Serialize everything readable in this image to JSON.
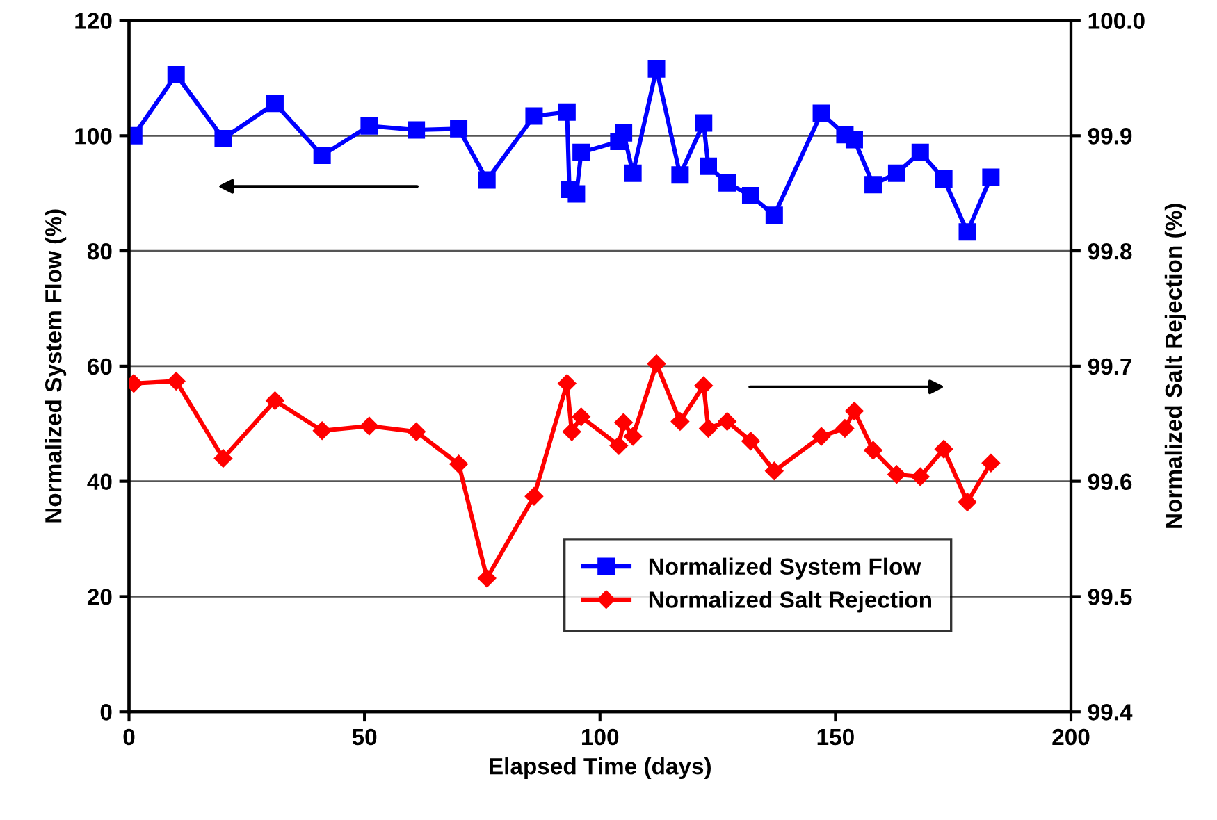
{
  "chart_data": {
    "type": "line",
    "xlabel": "Elapsed Time (days)",
    "ylabel": "Normalized System Flow (%)",
    "y2label": "Normalized Salt Rejection (%)",
    "xlim": [
      0,
      200
    ],
    "xticks": [
      0,
      50,
      100,
      150,
      200
    ],
    "ylim": [
      0,
      120
    ],
    "yticks": [
      0,
      20,
      40,
      60,
      80,
      100,
      120
    ],
    "y2lim": [
      99.4,
      100.0
    ],
    "y2ticks": [
      99.4,
      99.5,
      99.6,
      99.7,
      99.8,
      99.9,
      {
        "value": 100.0,
        "label": "100.0"
      }
    ],
    "grid": "y",
    "legend": "bottom",
    "line_style": "solid",
    "series": [
      {
        "name": "Normalized System Flow",
        "color": "#0000ff",
        "marker": "square",
        "x": [
          1,
          10,
          20,
          31,
          41,
          51,
          61,
          70,
          76,
          86,
          93,
          93.5,
          95,
          96,
          104,
          105,
          107,
          112,
          117,
          122,
          123,
          127,
          132,
          137,
          147,
          152,
          154,
          158,
          163,
          168,
          173,
          178,
          183
        ],
        "values": [
          100,
          110.6,
          99.5,
          105.6,
          96.6,
          101.7,
          101,
          101.2,
          92.3,
          103.4,
          104.1,
          90.7,
          89.9,
          97.1,
          99,
          100.5,
          93.5,
          111.6,
          93.2,
          102.2,
          94.7,
          91.8,
          89.6,
          86.2,
          103.9,
          100.2,
          99.3,
          91.5,
          93.5,
          97.1,
          92.5,
          83.3,
          92.8
        ]
      },
      {
        "name": "Normalized Salt Rejection",
        "color": "#ff0000",
        "marker": "diamond",
        "axis": "y2",
        "x": [
          1,
          10,
          20,
          31,
          41,
          51,
          61,
          70,
          76,
          86,
          93,
          94,
          96,
          104,
          105,
          107,
          112,
          117,
          122,
          123,
          127,
          132,
          137,
          147,
          152,
          154,
          158,
          163,
          168,
          173,
          178,
          183
        ],
        "values": [
          99.685,
          99.687,
          99.62,
          99.67,
          99.644,
          99.648,
          99.643,
          99.615,
          99.516,
          99.587,
          99.685,
          99.643,
          99.656,
          99.631,
          99.651,
          99.639,
          99.702,
          99.652,
          99.683,
          99.646,
          99.652,
          99.635,
          99.609,
          99.639,
          99.646,
          99.661,
          99.627,
          99.606,
          99.604,
          99.628,
          99.582,
          99.616
        ]
      }
    ]
  }
}
